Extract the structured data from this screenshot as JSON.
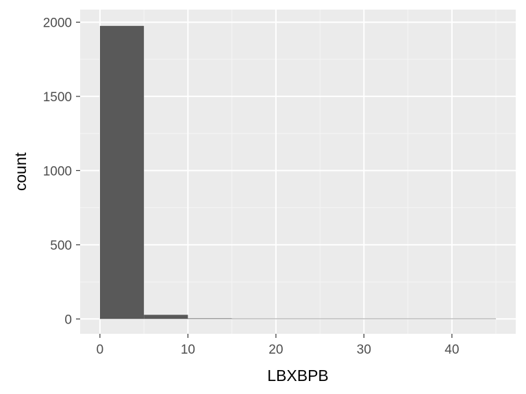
{
  "chart_data": {
    "type": "bar",
    "subtype": "histogram",
    "xlabel": "LBXBPB",
    "ylabel": "count",
    "xlim": [
      -2.25,
      47.25
    ],
    "ylim": [
      -100,
      2085
    ],
    "x_ticks": [
      0,
      10,
      20,
      30,
      40
    ],
    "x_tick_labels": [
      "0",
      "10",
      "20",
      "30",
      "40"
    ],
    "y_ticks": [
      0,
      500,
      1000,
      1500,
      2000
    ],
    "y_tick_labels": [
      "0",
      "500",
      "1000",
      "1500",
      "2000"
    ],
    "grid": true,
    "bins": [
      {
        "x0": 0,
        "x1": 5,
        "count": 1975
      },
      {
        "x0": 5,
        "x1": 10,
        "count": 28
      },
      {
        "x0": 10,
        "x1": 15,
        "count": 4
      },
      {
        "x0": 15,
        "x1": 20,
        "count": 0
      },
      {
        "x0": 20,
        "x1": 25,
        "count": 0
      },
      {
        "x0": 25,
        "x1": 30,
        "count": 0
      },
      {
        "x0": 30,
        "x1": 35,
        "count": 0
      },
      {
        "x0": 35,
        "x1": 40,
        "count": 0
      },
      {
        "x0": 40,
        "x1": 45,
        "count": 0
      }
    ],
    "colors": {
      "panel": "#ebebeb",
      "grid_major": "#ffffff",
      "grid_minor": "#f5f5f5",
      "bar": "#595959"
    }
  }
}
